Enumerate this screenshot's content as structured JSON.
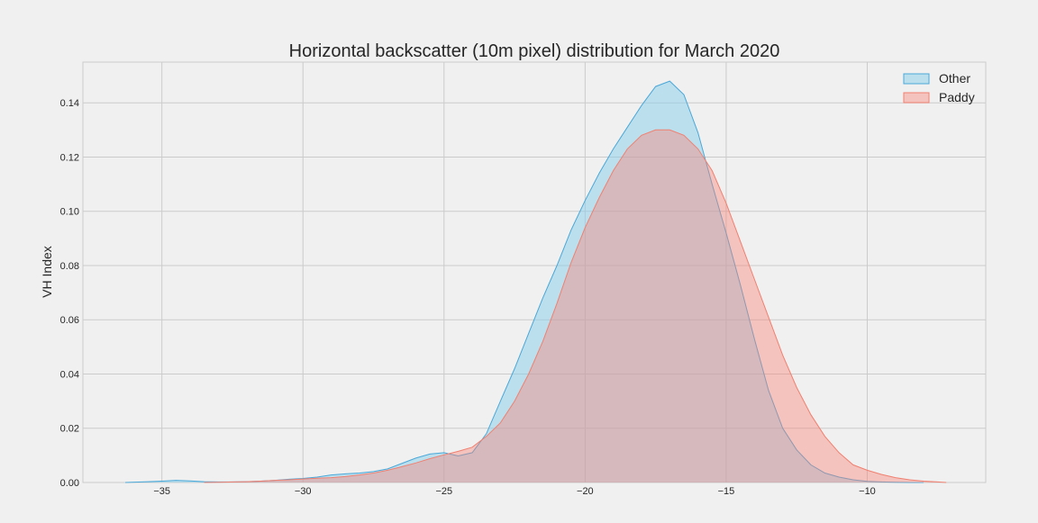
{
  "chart_data": {
    "type": "area",
    "title": "Horizontal backscatter (10m pixel) distribution for March 2020",
    "xlabel": "",
    "ylabel": "VH Index",
    "xlim": [
      -37.8,
      -5.8
    ],
    "ylim": [
      0,
      0.155
    ],
    "xticks": [
      -35,
      -30,
      -25,
      -20,
      -15,
      -10
    ],
    "xtick_labels": [
      "−35",
      "−30",
      "−25",
      "−20",
      "−15",
      "−10"
    ],
    "yticks": [
      0.0,
      0.02,
      0.04,
      0.06,
      0.08,
      0.1,
      0.12,
      0.14
    ],
    "ytick_labels": [
      "0.00",
      "0.02",
      "0.04",
      "0.06",
      "0.08",
      "0.10",
      "0.12",
      "0.14"
    ],
    "grid": true,
    "legend_position": "top-right",
    "series": [
      {
        "name": "Other",
        "fill": "#87ceeb",
        "stroke": "#4aa8d8",
        "fill_opacity": 0.5,
        "x": [
          -36.3,
          -35.5,
          -35.0,
          -34.5,
          -34.0,
          -33.5,
          -33.0,
          -32.5,
          -32.0,
          -31.5,
          -31.0,
          -30.5,
          -30.0,
          -29.5,
          -29.0,
          -28.5,
          -28.0,
          -27.5,
          -27.0,
          -26.5,
          -26.0,
          -25.5,
          -25.0,
          -24.5,
          -24.0,
          -23.5,
          -23.0,
          -22.5,
          -22.0,
          -21.5,
          -21.0,
          -20.5,
          -20.0,
          -19.5,
          -19.0,
          -18.5,
          -18.0,
          -17.5,
          -17.0,
          -16.5,
          -16.0,
          -15.5,
          -15.0,
          -14.5,
          -14.0,
          -13.5,
          -13.0,
          -12.5,
          -12.0,
          -11.5,
          -11.0,
          -10.5,
          -10.0,
          -9.5,
          -9.0,
          -8.5,
          -8.0
        ],
        "y": [
          0.0,
          0.0003,
          0.0005,
          0.0008,
          0.0006,
          0.0003,
          0.0002,
          0.0002,
          0.0003,
          0.0005,
          0.0008,
          0.0012,
          0.0015,
          0.002,
          0.0028,
          0.0032,
          0.0035,
          0.004,
          0.005,
          0.007,
          0.009,
          0.0105,
          0.011,
          0.0098,
          0.011,
          0.018,
          0.03,
          0.042,
          0.055,
          0.068,
          0.08,
          0.093,
          0.104,
          0.114,
          0.123,
          0.131,
          0.139,
          0.146,
          0.148,
          0.143,
          0.129,
          0.11,
          0.092,
          0.073,
          0.053,
          0.034,
          0.02,
          0.012,
          0.0065,
          0.0035,
          0.002,
          0.001,
          0.0004,
          0.0002,
          0.0001,
          0.0,
          0.0
        ]
      },
      {
        "name": "Paddy",
        "fill": "#fa8072",
        "stroke": "#f08070",
        "fill_opacity": 0.4,
        "x": [
          -33.5,
          -33.0,
          -32.5,
          -32.0,
          -31.5,
          -31.0,
          -30.5,
          -30.0,
          -29.5,
          -29.0,
          -28.5,
          -28.0,
          -27.5,
          -27.0,
          -26.5,
          -26.0,
          -25.5,
          -25.0,
          -24.5,
          -24.0,
          -23.5,
          -23.0,
          -22.5,
          -22.0,
          -21.5,
          -21.0,
          -20.5,
          -20.0,
          -19.5,
          -19.0,
          -18.5,
          -18.0,
          -17.5,
          -17.0,
          -16.5,
          -16.0,
          -15.5,
          -15.0,
          -14.5,
          -14.0,
          -13.5,
          -13.0,
          -12.5,
          -12.0,
          -11.5,
          -11.0,
          -10.5,
          -10.0,
          -9.5,
          -9.0,
          -8.5,
          -8.0,
          -7.5,
          -7.2
        ],
        "y": [
          0.0,
          0.0001,
          0.0002,
          0.0003,
          0.0005,
          0.0008,
          0.001,
          0.0013,
          0.0016,
          0.0018,
          0.0022,
          0.0028,
          0.0035,
          0.0045,
          0.0058,
          0.0072,
          0.0088,
          0.0102,
          0.0115,
          0.013,
          0.017,
          0.022,
          0.03,
          0.04,
          0.052,
          0.066,
          0.081,
          0.094,
          0.105,
          0.115,
          0.123,
          0.128,
          0.13,
          0.13,
          0.128,
          0.123,
          0.115,
          0.103,
          0.089,
          0.075,
          0.061,
          0.047,
          0.035,
          0.025,
          0.017,
          0.011,
          0.0065,
          0.0045,
          0.003,
          0.0018,
          0.001,
          0.0005,
          0.0002,
          0.0
        ]
      }
    ]
  }
}
